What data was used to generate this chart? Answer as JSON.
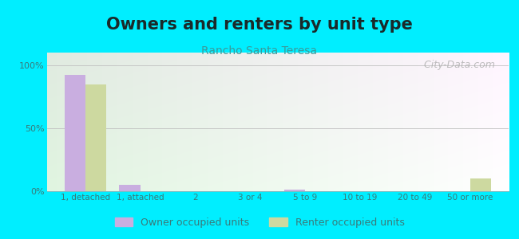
{
  "title": "Owners and renters by unit type",
  "subtitle": "Rancho Santa Teresa",
  "categories": [
    "1, detached",
    "1, attached",
    "2",
    "3 or 4",
    "5 to 9",
    "10 to 19",
    "20 to 49",
    "50 or more"
  ],
  "owner_values": [
    92,
    5,
    0,
    0,
    1,
    0,
    0,
    0
  ],
  "renter_values": [
    85,
    0,
    0,
    0,
    0,
    0,
    0,
    10
  ],
  "owner_color": "#c9aee0",
  "renter_color": "#cdd9a0",
  "background_outer": "#00eeff",
  "yticks": [
    0,
    50,
    100
  ],
  "ytick_labels": [
    "0%",
    "50%",
    "100%"
  ],
  "ylim": [
    0,
    110
  ],
  "bar_width": 0.38,
  "legend_owner": "Owner occupied units",
  "legend_renter": "Renter occupied units",
  "title_fontsize": 15,
  "subtitle_fontsize": 10,
  "title_color": "#1a2a2a",
  "subtitle_color": "#3a9a9a",
  "tick_color": "#3a7a7a",
  "watermark": "  City-Data.com"
}
